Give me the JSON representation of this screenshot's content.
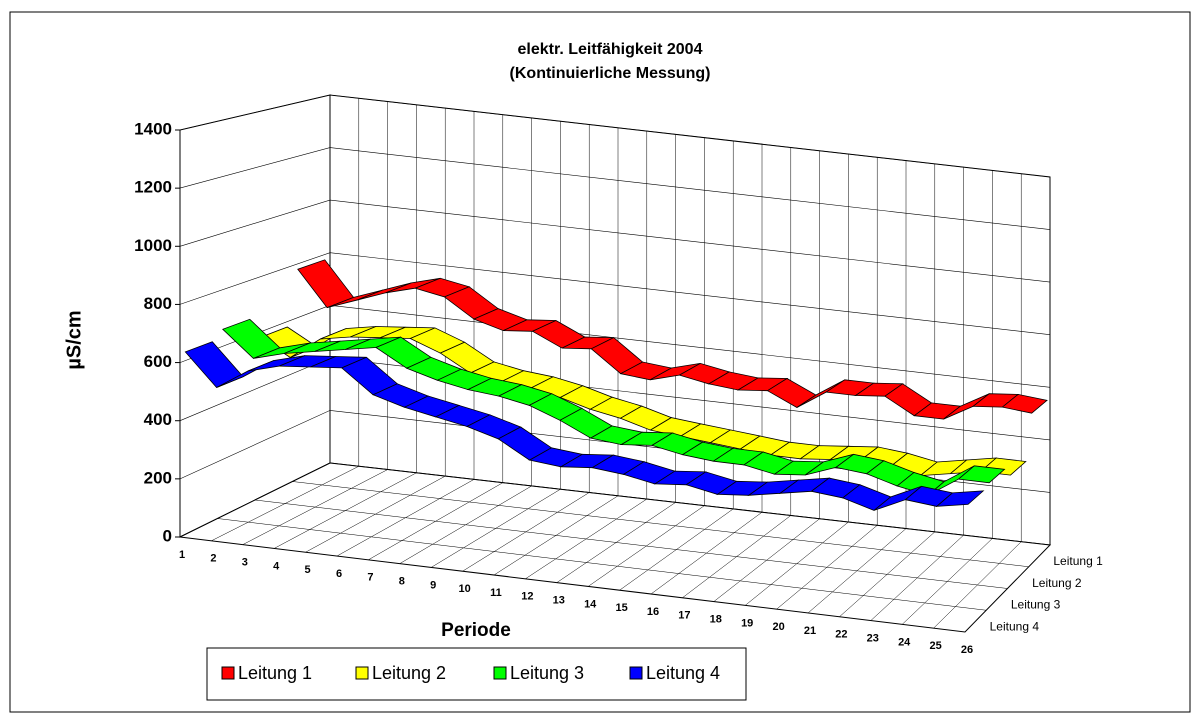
{
  "chart_data": {
    "type": "ribbon3d",
    "title": "elektr. Leitfähigkeit 2004",
    "subtitle": "(Kontinuierliche Messung)",
    "y_label": "µS/cm",
    "x_label": "Periode",
    "categories": [
      "1",
      "2",
      "3",
      "4",
      "5",
      "6",
      "7",
      "8",
      "9",
      "10",
      "11",
      "12",
      "13",
      "14",
      "15",
      "16",
      "17",
      "18",
      "19",
      "20",
      "21",
      "22",
      "23",
      "24",
      "25",
      "26"
    ],
    "ylim": [
      0,
      1400
    ],
    "yticks": [
      0,
      200,
      400,
      600,
      800,
      1000,
      1200,
      1400
    ],
    "grid": true,
    "legend": "bottom",
    "series": [
      {
        "name": "Leitung 1",
        "color": "#ff0000",
        "values": [
          780,
          650,
          690,
          730,
          760,
          740,
          670,
          640,
          650,
          600,
          610,
          530,
          520,
          550,
          530,
          520,
          530,
          480,
          550,
          550,
          560,
          500,
          500,
          560,
          570,
          560
        ]
      },
      {
        "name": "Leitung 2",
        "color": "#ffff00",
        "values": [
          580,
          520,
          600,
          620,
          630,
          640,
          600,
          540,
          520,
          510,
          490,
          460,
          440,
          410,
          400,
          390,
          380,
          370,
          370,
          380,
          390,
          380,
          360,
          380,
          400,
          400
        ]
      },
      {
        "name": "Leitung 3",
        "color": "#00ff00",
        "values": [
          660,
          570,
          600,
          620,
          640,
          660,
          600,
          570,
          550,
          540,
          520,
          480,
          430,
          420,
          430,
          410,
          400,
          400,
          380,
          390,
          430,
          420,
          390,
          370,
          440,
          440
        ]
      },
      {
        "name": "Leitung 4",
        "color": "#0000ff",
        "values": [
          630,
          520,
          590,
          620,
          630,
          640,
          560,
          530,
          510,
          490,
          460,
          400,
          390,
          400,
          390,
          370,
          380,
          360,
          370,
          390,
          410,
          400,
          370,
          420,
          410,
          430
        ]
      }
    ]
  }
}
